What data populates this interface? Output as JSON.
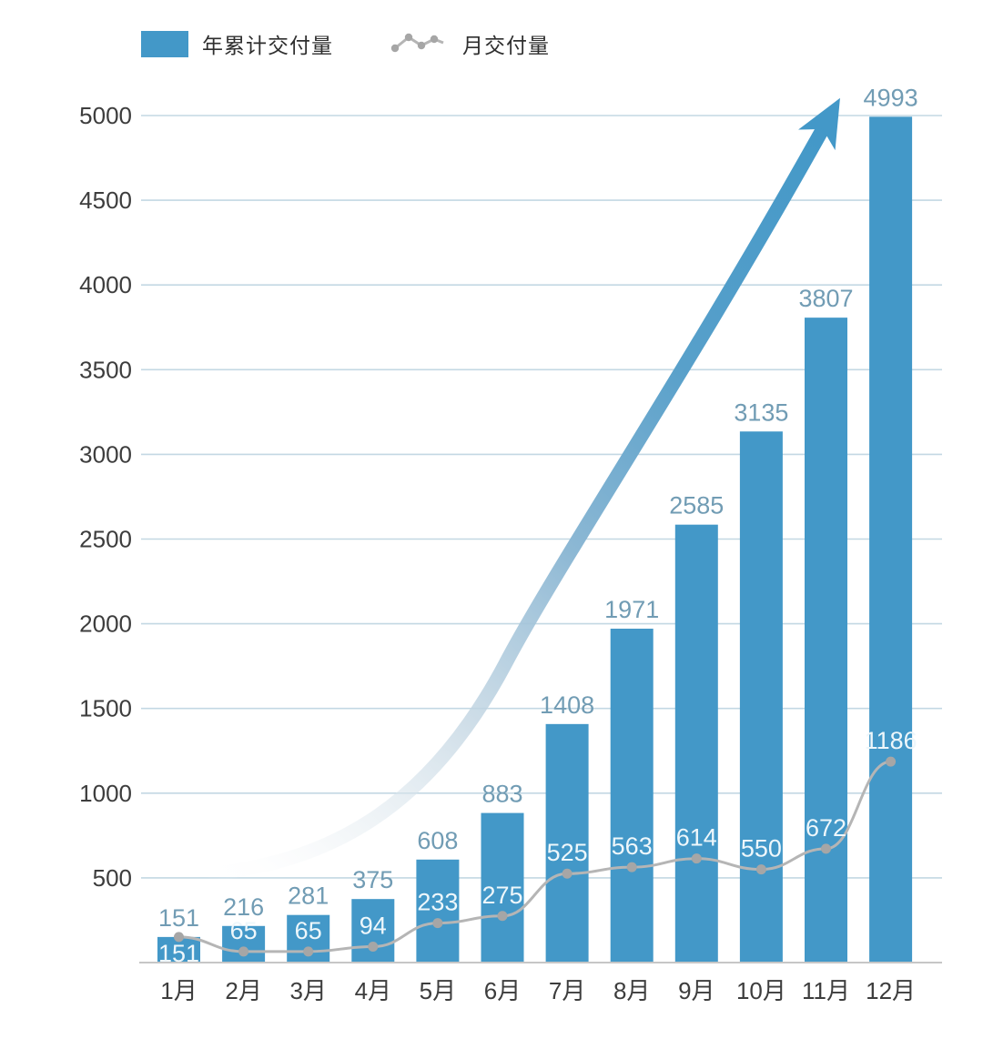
{
  "legend": {
    "bar_label": "年累计交付量",
    "line_label": "月交付量"
  },
  "colors": {
    "bar": "#4398c8",
    "bar_value_label": "#719cb4",
    "line": "#b5b5b5",
    "dot": "#a6a6a6",
    "line_value_label": "#eef7fb",
    "grid": "#c3d8e3",
    "axis_baseline": "#c6c6c6",
    "tick_text": "#3d3d3d",
    "arrow": "#4398c8",
    "legend_text": "#2e2e2e",
    "background": "#ffffff"
  },
  "chart_data": {
    "type": "bar",
    "categories": [
      "1月",
      "2月",
      "3月",
      "4月",
      "5月",
      "6月",
      "7月",
      "8月",
      "9月",
      "10月",
      "11月",
      "12月"
    ],
    "series": [
      {
        "name": "年累计交付量",
        "type": "bar",
        "values": [
          151,
          216,
          281,
          375,
          608,
          883,
          1408,
          1971,
          2585,
          3135,
          3807,
          4993
        ]
      },
      {
        "name": "月交付量",
        "type": "line",
        "values": [
          151,
          65,
          65,
          94,
          233,
          275,
          525,
          563,
          614,
          550,
          672,
          1186
        ]
      }
    ],
    "title": "",
    "xlabel": "",
    "ylabel": "",
    "ylim": [
      0,
      5000
    ],
    "yticks": [
      500,
      1000,
      1500,
      2000,
      2500,
      3000,
      3500,
      4000,
      4500,
      5000
    ],
    "grid": true,
    "legend_position": "top-left",
    "annotations": [
      "upward-growth-arrow"
    ]
  }
}
